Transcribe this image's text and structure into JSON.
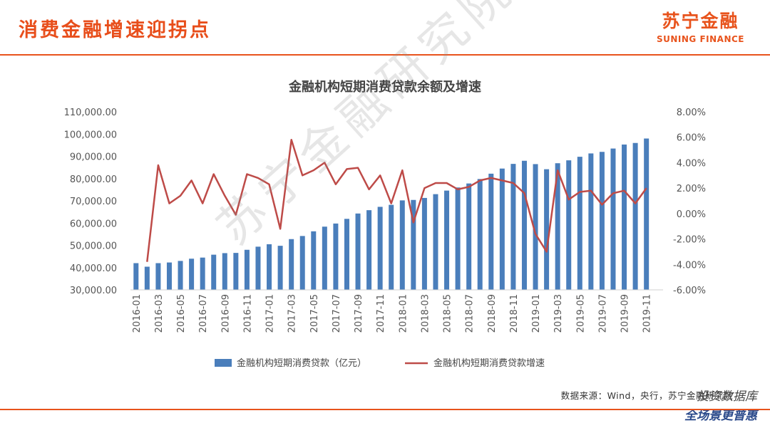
{
  "header": {
    "title": "消费金融增速迎拐点",
    "logo_cn": "苏宁金融",
    "logo_en": "SUNING FINANCE"
  },
  "source_text": "数据来源：Wind，央行，苏宁金融研究院",
  "watermark_text": "苏宁金融研究院",
  "stamp": {
    "top_text": "投资数据库",
    "bottom_text": "全场景更普惠"
  },
  "colors": {
    "accent": "#e8531c",
    "bar": "#4a7ebb",
    "line": "#be4b48"
  },
  "chart_data": {
    "type": "bar",
    "title": "金融机构短期消费贷款余额及增速",
    "x_tick_labels": [
      "2016-01",
      "2016-03",
      "2016-05",
      "2016-07",
      "2016-09",
      "2016-11",
      "2017-01",
      "2017-03",
      "2017-05",
      "2017-07",
      "2017-09",
      "2017-11",
      "2018-01",
      "2018-03",
      "2018-05",
      "2018-07",
      "2018-09",
      "2018-11",
      "2019-01",
      "2019-03",
      "2019-05",
      "2019-07",
      "2019-09",
      "2019-11"
    ],
    "categories": [
      "2016-01",
      "2016-02",
      "2016-03",
      "2016-04",
      "2016-05",
      "2016-06",
      "2016-07",
      "2016-08",
      "2016-09",
      "2016-10",
      "2016-11",
      "2016-12",
      "2017-01",
      "2017-02",
      "2017-03",
      "2017-04",
      "2017-05",
      "2017-06",
      "2017-07",
      "2017-08",
      "2017-09",
      "2017-10",
      "2017-11",
      "2017-12",
      "2018-01",
      "2018-02",
      "2018-03",
      "2018-04",
      "2018-05",
      "2018-06",
      "2018-07",
      "2018-08",
      "2018-09",
      "2018-10",
      "2018-11",
      "2018-12",
      "2019-01",
      "2019-02",
      "2019-03",
      "2019-04",
      "2019-05",
      "2019-06",
      "2019-07",
      "2019-08",
      "2019-09",
      "2019-10",
      "2019-11",
      "2019-12"
    ],
    "series": [
      {
        "name": "金融机构短期消费贷款（亿元）",
        "type": "bar",
        "axis": "left",
        "values": [
          42000,
          40400,
          42000,
          42300,
          43000,
          44000,
          44500,
          45800,
          46500,
          46600,
          48000,
          49400,
          50500,
          49800,
          52800,
          54200,
          56300,
          58400,
          59800,
          61900,
          64300,
          65800,
          67300,
          68200,
          70200,
          70400,
          71300,
          73000,
          74600,
          76000,
          77800,
          79800,
          82200,
          84500,
          86600,
          88000,
          86500,
          84200,
          86900,
          88200,
          89800,
          91300,
          92000,
          93500,
          95300,
          96000,
          98000,
          null
        ]
      },
      {
        "name": "金融机构短期消费贷款增速",
        "type": "line",
        "axis": "right",
        "values": [
          null,
          -3.8,
          3.8,
          0.8,
          1.4,
          2.6,
          0.8,
          3.1,
          1.4,
          -0.1,
          3.1,
          2.8,
          2.3,
          -1.2,
          5.8,
          3.0,
          3.4,
          4.0,
          2.3,
          3.5,
          3.6,
          1.9,
          3.0,
          0.8,
          3.4,
          -0.7,
          2.0,
          2.4,
          2.4,
          1.9,
          2.1,
          2.6,
          2.8,
          2.6,
          2.4,
          1.6,
          -1.6,
          -3.0,
          3.4,
          1.1,
          1.7,
          1.8,
          0.7,
          1.6,
          1.8,
          0.8,
          2.0,
          null
        ]
      }
    ],
    "y_left": {
      "min": 30000,
      "max": 110000,
      "step": 10000,
      "tick_labels": [
        "30,000.00",
        "40,000.00",
        "50,000.00",
        "60,000.00",
        "70,000.00",
        "80,000.00",
        "90,000.00",
        "100,000.00",
        "110,000.00"
      ]
    },
    "y_right": {
      "min": -6,
      "max": 8,
      "step": 2,
      "tick_labels": [
        "-6.00%",
        "-4.00%",
        "-2.00%",
        "0.00%",
        "2.00%",
        "4.00%",
        "6.00%",
        "8.00%"
      ]
    },
    "legend_position": "bottom",
    "grid": false
  }
}
